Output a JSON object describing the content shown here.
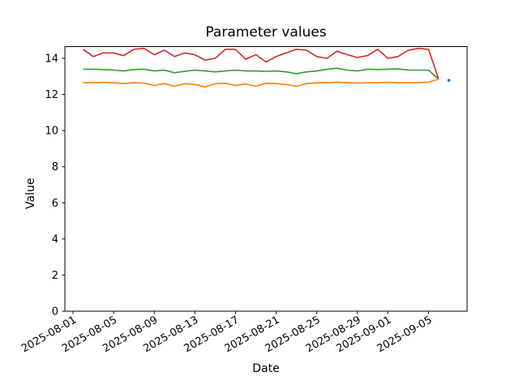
{
  "figure": {
    "title": "Parameter values",
    "xlabel": "Date",
    "ylabel": "Value"
  },
  "chart_data": {
    "type": "line",
    "x": [
      "2025-08-02",
      "2025-08-03",
      "2025-08-04",
      "2025-08-05",
      "2025-08-06",
      "2025-08-07",
      "2025-08-08",
      "2025-08-09",
      "2025-08-10",
      "2025-08-11",
      "2025-08-12",
      "2025-08-13",
      "2025-08-14",
      "2025-08-15",
      "2025-08-16",
      "2025-08-17",
      "2025-08-18",
      "2025-08-19",
      "2025-08-20",
      "2025-08-21",
      "2025-08-22",
      "2025-08-23",
      "2025-08-24",
      "2025-08-25",
      "2025-08-26",
      "2025-08-27",
      "2025-08-28",
      "2025-08-29",
      "2025-08-30",
      "2025-08-31",
      "2025-09-01",
      "2025-09-02",
      "2025-09-03",
      "2025-09-04",
      "2025-09-05",
      "2025-09-06"
    ],
    "series": [
      {
        "name": "red",
        "color": "#d62728",
        "values": [
          14.5,
          14.1,
          14.3,
          14.3,
          14.15,
          14.5,
          14.55,
          14.2,
          14.45,
          14.1,
          14.3,
          14.2,
          13.9,
          14.0,
          14.5,
          14.5,
          13.95,
          14.2,
          13.8,
          14.1,
          14.3,
          14.5,
          14.45,
          14.1,
          14.0,
          14.4,
          14.2,
          14.05,
          14.15,
          14.5,
          14.0,
          14.1,
          14.45,
          14.55,
          14.5,
          12.85
        ]
      },
      {
        "name": "green",
        "color": "#2ca02c",
        "values": [
          13.4,
          13.4,
          13.38,
          13.35,
          13.3,
          13.38,
          13.4,
          13.3,
          13.35,
          13.2,
          13.28,
          13.35,
          13.3,
          13.25,
          13.3,
          13.35,
          13.3,
          13.3,
          13.28,
          13.3,
          13.25,
          13.15,
          13.25,
          13.3,
          13.4,
          13.45,
          13.35,
          13.3,
          13.4,
          13.38,
          13.4,
          13.42,
          13.35,
          13.35,
          13.35,
          12.85
        ]
      },
      {
        "name": "orange",
        "color": "#ff7f0e",
        "values": [
          12.65,
          12.65,
          12.67,
          12.65,
          12.6,
          12.65,
          12.62,
          12.5,
          12.6,
          12.45,
          12.6,
          12.55,
          12.42,
          12.6,
          12.62,
          12.5,
          12.58,
          12.45,
          12.62,
          12.6,
          12.55,
          12.45,
          12.6,
          12.65,
          12.65,
          12.68,
          12.65,
          12.62,
          12.65,
          12.65,
          12.67,
          12.65,
          12.65,
          12.65,
          12.68,
          12.85
        ]
      }
    ],
    "point_series": [
      {
        "name": "blue",
        "color": "#1f77b4",
        "date": "2025-09-07",
        "value": 12.78
      }
    ],
    "xticks": [
      "2025-08-01",
      "2025-08-05",
      "2025-08-09",
      "2025-08-13",
      "2025-08-17",
      "2025-08-21",
      "2025-08-25",
      "2025-08-29",
      "2025-09-01",
      "2025-09-05"
    ],
    "yticks": [
      0,
      2,
      4,
      6,
      8,
      10,
      12,
      14
    ],
    "ylim": [
      0,
      14.65
    ],
    "grid": false,
    "legend": "none"
  },
  "colors": {
    "axis": "#000000",
    "background": "#ffffff",
    "text": "#000000"
  }
}
